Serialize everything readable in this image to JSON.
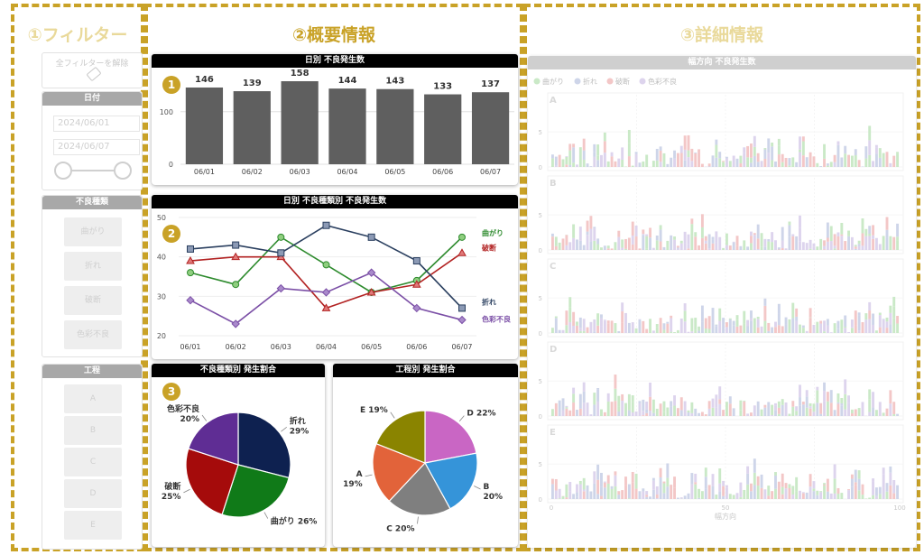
{
  "sections": {
    "filter": {
      "title": "①フィルター",
      "color": "#e9d99a"
    },
    "summary": {
      "title": "②概要情報",
      "color": "#c9a227"
    },
    "detail": {
      "title": "③詳細情報",
      "color": "#e9d99a"
    }
  },
  "filter": {
    "clear_label": "全フィルターを解除",
    "date": {
      "header": "日付",
      "start": "2024/06/01",
      "end": "2024/06/07"
    },
    "defect_types": {
      "header": "不良種類",
      "items": [
        "曲がり",
        "折れ",
        "破断",
        "色彩不良"
      ]
    },
    "processes": {
      "header": "工程",
      "items": [
        "A",
        "B",
        "C",
        "D",
        "E"
      ]
    }
  },
  "badges": [
    "1",
    "2",
    "3"
  ],
  "charts": {
    "daily": {
      "title": "日別 不良発生数"
    },
    "daily_type": {
      "title": "日別 不良種類別 不良発生数"
    },
    "type_ratio": {
      "title": "不良種類別 発生割合"
    },
    "process_ratio": {
      "title": "工程別 発生割合"
    },
    "width_dir": {
      "title": "幅方向 不良発生数",
      "xlabel": "幅方向"
    }
  },
  "chart_data": [
    {
      "type": "bar",
      "title": "日別 不良発生数",
      "categories": [
        "06/01",
        "06/02",
        "06/03",
        "06/04",
        "06/05",
        "06/06",
        "06/07"
      ],
      "values": [
        146,
        139,
        158,
        144,
        143,
        133,
        137
      ],
      "yticks": [
        0,
        100
      ],
      "ylim": [
        0,
        170
      ],
      "color": "#5f5f5f"
    },
    {
      "type": "line",
      "title": "日別 不良種類別 不良発生数",
      "categories": [
        "06/01",
        "06/02",
        "06/03",
        "06/04",
        "06/05",
        "06/06",
        "06/07"
      ],
      "ylim": [
        20,
        50
      ],
      "yticks": [
        20,
        30,
        40,
        50
      ],
      "series": [
        {
          "name": "曲がり",
          "values": [
            36,
            33,
            45,
            38,
            31,
            34,
            45
          ],
          "color": "#2e8b2e"
        },
        {
          "name": "破断",
          "values": [
            39,
            40,
            40,
            27,
            31,
            33,
            41
          ],
          "color": "#b22222"
        },
        {
          "name": "折れ",
          "values": [
            42,
            43,
            41,
            48,
            45,
            39,
            27
          ],
          "color": "#2a3f5f"
        },
        {
          "name": "色彩不良",
          "values": [
            29,
            23,
            32,
            31,
            36,
            27,
            24
          ],
          "color": "#7b4fa6"
        }
      ]
    },
    {
      "type": "pie",
      "title": "不良種類別 発生割合",
      "slices": [
        {
          "label": "折れ",
          "pct": "29%",
          "value": 29,
          "color": "#0e2150"
        },
        {
          "label": "曲がり",
          "pct": "26%",
          "value": 26,
          "color": "#107a18"
        },
        {
          "label": "破断",
          "pct": "25%",
          "value": 25,
          "color": "#a50b0b"
        },
        {
          "label": "色彩不良",
          "pct": "20%",
          "value": 20,
          "color": "#5f2d94"
        }
      ]
    },
    {
      "type": "pie",
      "title": "工程別 発生割合",
      "slices": [
        {
          "label": "D 22%",
          "value": 22,
          "color": "#c966c4"
        },
        {
          "label": "B 20%",
          "value": 20,
          "color": "#3594d9"
        },
        {
          "label": "C 20%",
          "value": 20,
          "color": "#7f7f7f"
        },
        {
          "label": "A 19%",
          "value": 19,
          "color": "#e2633a"
        },
        {
          "label": "E 19%",
          "value": 19,
          "color": "#8a8400"
        }
      ]
    },
    {
      "type": "bar",
      "title": "幅方向 不良発生数",
      "legend": [
        {
          "name": "曲がり",
          "color": "#9fd89a"
        },
        {
          "name": "折れ",
          "color": "#a7b3d8"
        },
        {
          "name": "破断",
          "color": "#eb9a9a"
        },
        {
          "name": "色彩不良",
          "color": "#c2b1e0"
        }
      ],
      "panels": [
        "A",
        "B",
        "C",
        "D",
        "E"
      ],
      "xticks": [
        0,
        50,
        100
      ],
      "yticks": [
        0,
        5
      ],
      "xlabel": "幅方向"
    }
  ]
}
